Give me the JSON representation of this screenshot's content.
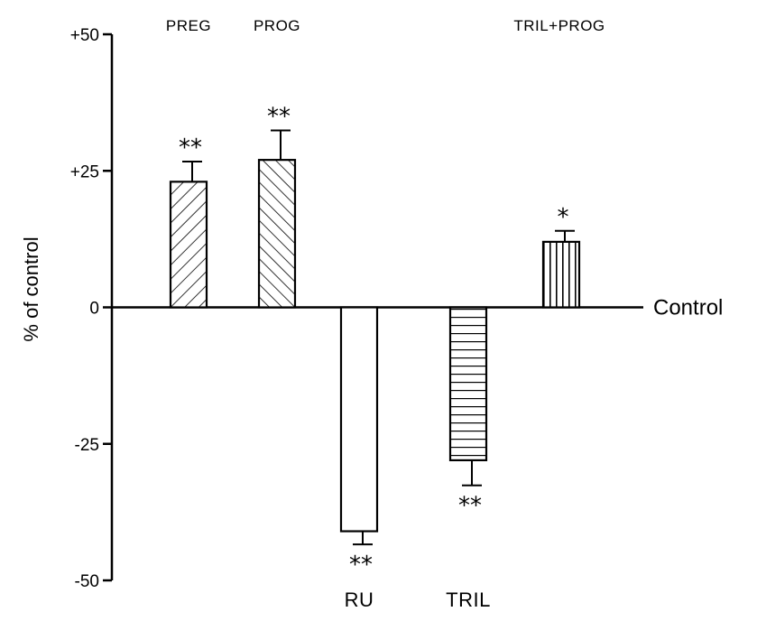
{
  "chart_data": {
    "type": "bar",
    "categories": [
      "PREG",
      "PROG",
      "RU",
      "TRIL",
      "TRIL+PROG"
    ],
    "values": [
      23,
      27,
      -41,
      -28,
      12
    ],
    "errors": [
      3.7,
      5.4,
      2.4,
      4.6,
      2.0
    ],
    "significance": [
      "**",
      "**",
      "**",
      "**",
      "*"
    ],
    "category_label_position": [
      "top",
      "top",
      "bottom",
      "bottom",
      "top"
    ],
    "patterns": [
      "diagonal-right",
      "diagonal-left",
      "none",
      "horizontal",
      "vertical"
    ],
    "title": "",
    "xlabel": "",
    "ylabel": "% of control",
    "ylim": [
      -50,
      50
    ],
    "yticks": [
      50,
      25,
      0,
      -25,
      -50
    ],
    "ytick_labels": [
      "+50",
      "+25",
      "0",
      "-25",
      "-50"
    ],
    "reference_line_label": "Control",
    "grid": false
  }
}
